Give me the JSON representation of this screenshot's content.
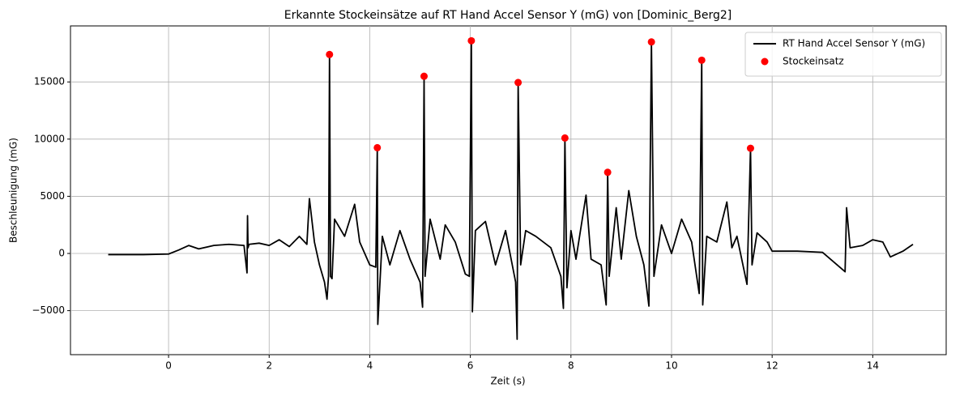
{
  "chart_data": {
    "type": "line",
    "title": "Erkannte Stockeinsätze auf RT Hand Accel Sensor Y (mG) von [Dominic_Berg2]",
    "x_label": "Zeit (s)",
    "y_label": "Beschleunigung (mG)",
    "xlim": [
      -1.95,
      15.46
    ],
    "ylim": [
      -8850,
      19900
    ],
    "xticks": [
      0,
      2,
      4,
      6,
      8,
      10,
      12,
      14
    ],
    "yticks": [
      {
        "value": -5000,
        "label": "−5000"
      },
      0,
      5000,
      10000,
      15000
    ],
    "grid": true,
    "legend": "upper right",
    "series": [
      {
        "name": "RT Hand Accel Sensor Y (mG)",
        "color": "#000000",
        "type": "line",
        "x": [
          -1.2,
          -0.5,
          0,
          0.2,
          0.4,
          0.6,
          0.9,
          1.2,
          1.5,
          1.56,
          1.57,
          1.58,
          1.6,
          1.8,
          2.0,
          2.2,
          2.4,
          2.6,
          2.75,
          2.8,
          2.9,
          3.0,
          3.1,
          3.15,
          3.18,
          3.2,
          3.22,
          3.25,
          3.3,
          3.5,
          3.7,
          3.8,
          4.0,
          4.12,
          4.15,
          4.16,
          4.25,
          4.4,
          4.6,
          4.8,
          5.0,
          5.05,
          5.08,
          5.1,
          5.2,
          5.4,
          5.5,
          5.7,
          5.9,
          5.98,
          6.02,
          6.04,
          6.1,
          6.3,
          6.5,
          6.7,
          6.9,
          6.93,
          6.95,
          7.0,
          7.1,
          7.3,
          7.6,
          7.8,
          7.85,
          7.88,
          7.92,
          8.0,
          8.1,
          8.3,
          8.4,
          8.6,
          8.7,
          8.73,
          8.76,
          8.9,
          9.0,
          9.15,
          9.3,
          9.45,
          9.55,
          9.6,
          9.65,
          9.8,
          10.0,
          10.2,
          10.4,
          10.55,
          10.6,
          10.62,
          10.7,
          10.9,
          11.1,
          11.2,
          11.3,
          11.5,
          11.57,
          11.6,
          11.7,
          11.9,
          12.0,
          12.5,
          13.0,
          13.45,
          13.48,
          13.55,
          13.8,
          14.0,
          14.2,
          14.35,
          14.6,
          14.8
        ],
        "values": [
          -100,
          -100,
          -50,
          300,
          700,
          400,
          700,
          800,
          700,
          -1700,
          3300,
          500,
          800,
          900,
          700,
          1200,
          600,
          1500,
          800,
          4800,
          1000,
          -1000,
          -2500,
          -4000,
          -2000,
          17400,
          -2000,
          -2200,
          3000,
          1500,
          4300,
          1000,
          -1000,
          -1200,
          9250,
          -6200,
          1500,
          -1000,
          2000,
          -500,
          -2500,
          -4700,
          15500,
          -2000,
          3000,
          -500,
          2500,
          1000,
          -1800,
          -2000,
          18600,
          -5100,
          2000,
          2800,
          -1000,
          2000,
          -2500,
          -7500,
          14950,
          -1000,
          2000,
          1500,
          500,
          -2000,
          -4800,
          10100,
          -3000,
          2000,
          -500,
          5100,
          -500,
          -1000,
          -4500,
          7100,
          -2000,
          4000,
          -500,
          5500,
          1500,
          -1000,
          -4600,
          18500,
          -2000,
          2500,
          0,
          3000,
          1000,
          -3500,
          16900,
          -4500,
          1500,
          1000,
          4500,
          500,
          1500,
          -2700,
          9200,
          -1000,
          1800,
          1000,
          200,
          200,
          100,
          -1600,
          4000,
          500,
          700,
          1200,
          1000,
          -300,
          200,
          800
        ]
      },
      {
        "name": "Stockeinsatz",
        "color": "#ff0000",
        "type": "scatter",
        "x": [
          3.2,
          4.15,
          5.08,
          6.02,
          6.95,
          7.88,
          8.73,
          9.6,
          10.6,
          11.57
        ],
        "values": [
          17400,
          9250,
          15500,
          18600,
          14950,
          10100,
          7100,
          18500,
          16900,
          9200
        ]
      }
    ]
  }
}
